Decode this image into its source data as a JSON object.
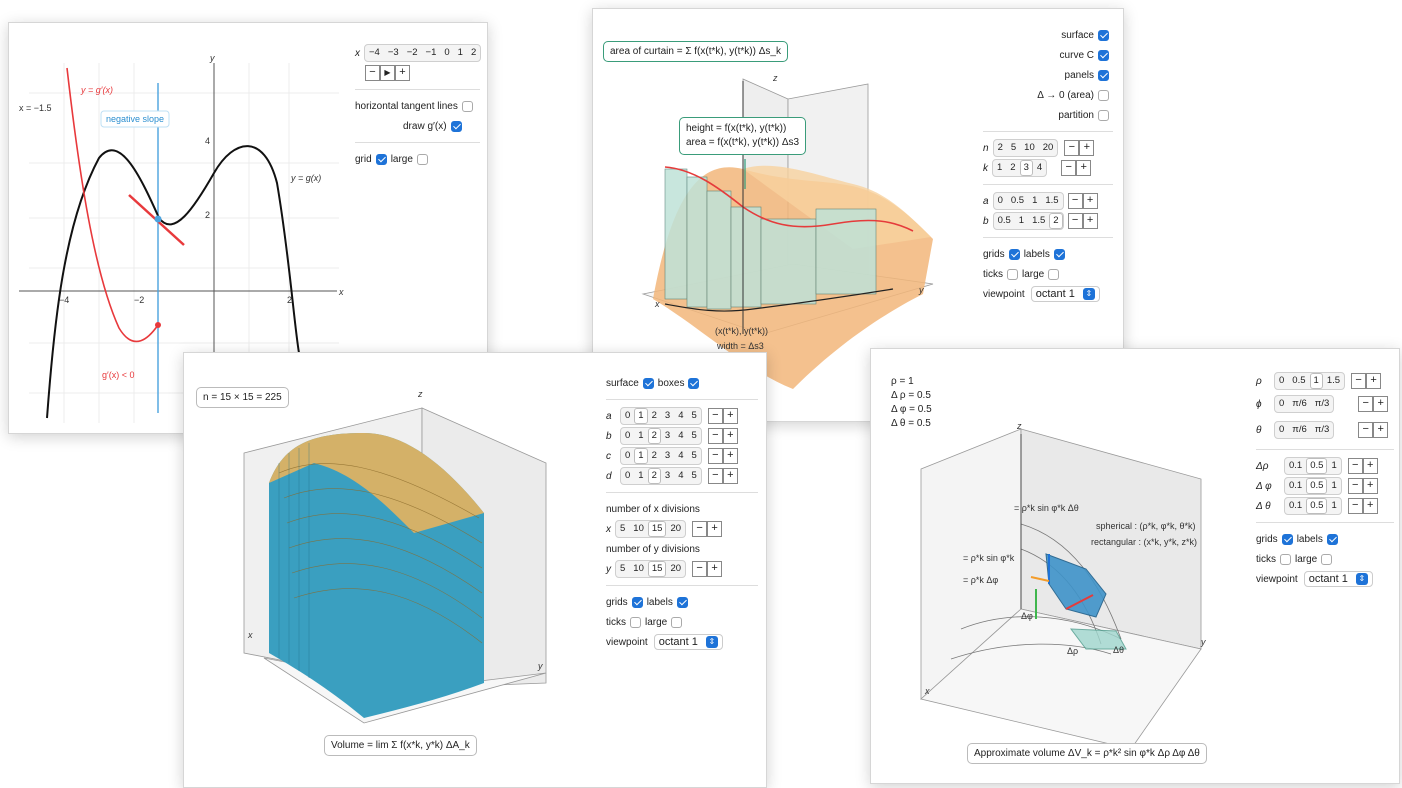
{
  "panel1": {
    "x_readout": "x = −1.5",
    "curve_g_label": "y = g(x)",
    "curve_gp_label": "y = g′(x)",
    "slope_label": "negative slope",
    "deriv_label": "g′(x) < 0",
    "x_axis": "x",
    "y_axis": "y",
    "ticks_x": [
      "−4",
      "−2",
      "2"
    ],
    "ticks_y": [
      "2",
      "4"
    ],
    "controls": {
      "x_label": "x",
      "x_values": [
        "−4",
        "−3",
        "−2",
        "−1",
        "0",
        "1",
        "2"
      ],
      "player": [
        "−",
        "▶",
        "+"
      ],
      "horizontal_tangent": "horizontal tangent lines",
      "draw_gprime": "draw g′(x)",
      "grid": "grid",
      "large": "large"
    }
  },
  "panel2": {
    "caption": "area of curtain = Σ f(x(t*k), y(t*k)) Δs_k",
    "height_caption": "height = f(x(t*k), y(t*k))",
    "area_caption": "area = f(x(t*k), y(t*k)) Δs3",
    "point_caption": "(x(t*k), y(t*k))",
    "width_caption": "width = Δs3",
    "x_axis": "x",
    "y_axis": "y",
    "z_axis": "z",
    "controls": {
      "surface": "surface",
      "curveC": "curve C",
      "panels": "panels",
      "delta": "Δ → 0 (area)",
      "partition": "partition",
      "n_label": "n",
      "n_values": [
        "2",
        "5",
        "10",
        "20"
      ],
      "k_label": "k",
      "k_values": [
        "1",
        "2",
        "3",
        "4"
      ],
      "a_label": "a",
      "a_values": [
        "0",
        "0.5",
        "1",
        "1.5"
      ],
      "b_label": "b",
      "b_values": [
        "0.5",
        "1",
        "1.5",
        "2"
      ],
      "grids": "grids",
      "labels": "labels",
      "ticks": "ticks",
      "large": "large",
      "viewpoint": "viewpoint",
      "viewpoint_value": "octant 1"
    }
  },
  "panel3": {
    "n_readout": "n = 15 × 15 = 225",
    "caption": "Volume = lim Σ f(x*k, y*k) ΔA_k",
    "x_axis": "x",
    "y_axis": "y",
    "z_axis": "z",
    "controls": {
      "surface": "surface",
      "boxes": "boxes",
      "a_label": "a",
      "b_label": "b",
      "c_label": "c",
      "d_label": "d",
      "abcd_values": [
        "0",
        "1",
        "2",
        "3",
        "4",
        "5"
      ],
      "x_div_title": "number of x divisions",
      "x_label": "x",
      "x_values": [
        "5",
        "10",
        "15",
        "20"
      ],
      "y_div_title": "number of y divisions",
      "y_label": "y",
      "y_values": [
        "5",
        "10",
        "15",
        "20"
      ],
      "grids": "grids",
      "labels": "labels",
      "ticks": "ticks",
      "large": "large",
      "viewpoint": "viewpoint",
      "viewpoint_value": "octant 1"
    }
  },
  "panel4": {
    "readouts": [
      "ρ = 1",
      "Δ ρ = 0.5",
      "Δ φ = 0.5",
      "Δ θ = 0.5"
    ],
    "label_arc": "= ρ*k sin φ*k Δθ",
    "label_sin": "= ρ*k sin φ*k",
    "label_dphi": "= ρ*k Δφ",
    "spherical": "spherical : (ρ*k, φ*k, θ*k)",
    "rectangular": "rectangular : (x*k, y*k, z*k)",
    "dphi": "Δφ",
    "drho": "Δρ",
    "dtheta": "Δθ",
    "caption": "Approximate volume ΔV_k = ρ*k² sin φ*k Δρ Δφ Δθ",
    "x_axis": "x",
    "y_axis": "y",
    "z_axis": "z",
    "controls": {
      "rho_label": "ρ",
      "rho_values": [
        "0",
        "0.5",
        "1",
        "1.5"
      ],
      "phi_label": "ϕ",
      "phi_values": [
        "0",
        "π/6",
        "π/3"
      ],
      "theta_label": "θ",
      "theta_values": [
        "0",
        "π/6",
        "π/3"
      ],
      "drho_label": "Δρ",
      "dphi_label": "Δ φ",
      "dtheta_label": "Δ θ",
      "delta_values": [
        "0.1",
        "0.5",
        "1"
      ],
      "grids": "grids",
      "labels": "labels",
      "ticks": "ticks",
      "large": "large",
      "viewpoint": "viewpoint",
      "viewpoint_value": "octant 1"
    }
  }
}
